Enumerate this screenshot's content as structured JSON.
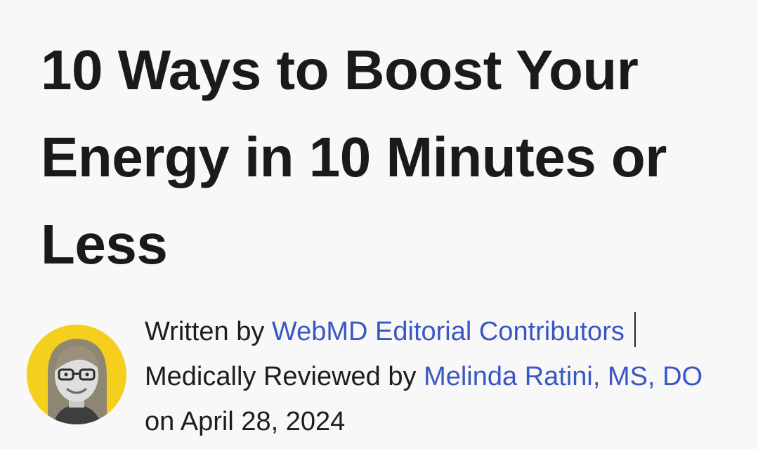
{
  "article": {
    "title": "10 Ways to Boost Your Energy in 10 Minutes or Less"
  },
  "byline": {
    "written_by_label": "Written by",
    "author": "WebMD Editorial Contributors",
    "reviewed_label": "Medically Reviewed by",
    "reviewer": "Melinda Ratini, MS, DO",
    "date_prefix": "on",
    "date": "April 28, 2024"
  },
  "colors": {
    "background": "#f8f8f8",
    "link": "#3a56c4",
    "avatar_background": "#f5cf1d"
  },
  "icons": {
    "avatar": "reviewer-portrait-photo"
  }
}
